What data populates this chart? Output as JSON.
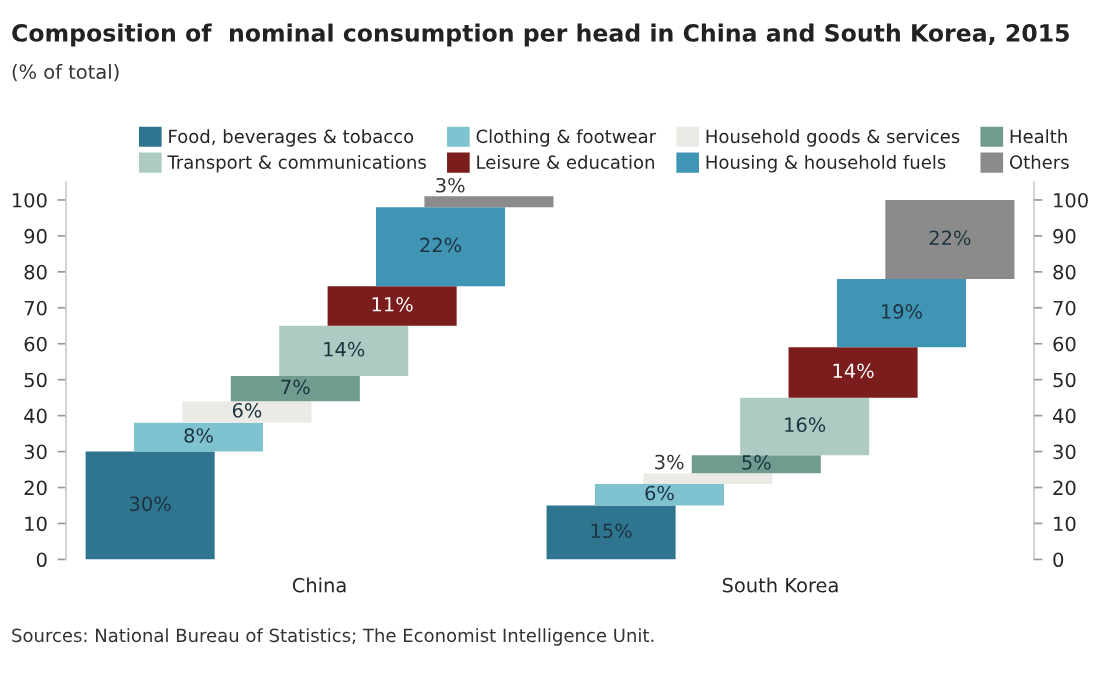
{
  "chart_data": {
    "type": "bar",
    "stacked": true,
    "title": "Composition of  nominal consumption per head in China and South Korea, 2015",
    "subtitle": "(% of total)",
    "categories": [
      "China",
      "South Korea"
    ],
    "series": [
      {
        "name": "Food, beverages & tobacco",
        "color": "#2f7590",
        "values": [
          30,
          15
        ],
        "value_labels": [
          "30%",
          "15%"
        ]
      },
      {
        "name": "Clothing & footwear",
        "color": "#7fc3d0",
        "values": [
          8,
          6
        ],
        "value_labels": [
          "8%",
          "6%"
        ]
      },
      {
        "name": "Household goods & services",
        "color": "#ebeae5",
        "values": [
          6,
          3
        ],
        "value_labels": [
          "6%",
          "3%"
        ]
      },
      {
        "name": "Health",
        "color": "#6f9c8f",
        "values": [
          7,
          5
        ],
        "value_labels": [
          "7%",
          "5%"
        ]
      },
      {
        "name": "Transport & communications",
        "color": "#aecbc3",
        "values": [
          14,
          16
        ],
        "value_labels": [
          "14%",
          "16%"
        ]
      },
      {
        "name": "Leisure & education",
        "color": "#7c1d1d",
        "values": [
          11,
          14
        ],
        "value_labels": [
          "11%",
          "14%"
        ]
      },
      {
        "name": "Housing & household fuels",
        "color": "#4095b5",
        "values": [
          22,
          19
        ],
        "value_labels": [
          "22%",
          "19%"
        ]
      },
      {
        "name": "Others",
        "color": "#8b8b8b",
        "values": [
          3,
          22
        ],
        "value_labels": [
          "3%",
          "22%"
        ]
      }
    ],
    "ylim": [
      0,
      105
    ],
    "yticks": [
      0,
      10,
      20,
      30,
      40,
      50,
      60,
      70,
      80,
      90,
      100
    ],
    "y2lim": [
      0,
      105
    ],
    "y2ticks": [
      0,
      10,
      20,
      30,
      40,
      50,
      60,
      70,
      80,
      90,
      100
    ],
    "legend": "top",
    "annotations": [
      "Sources: National Bureau of Statistics; The Economist Intelligence Unit."
    ]
  }
}
